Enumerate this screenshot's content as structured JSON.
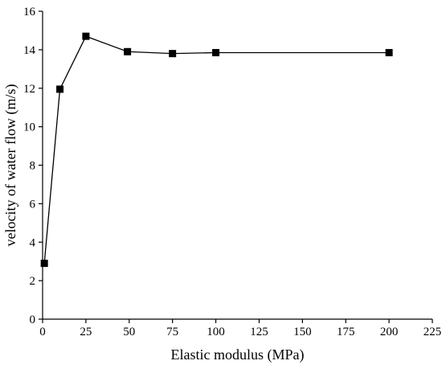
{
  "chart_data": {
    "type": "line",
    "title": "",
    "xlabel": "Elastic modulus (MPa)",
    "ylabel": "velocity of water flow (m/s)",
    "xlim": [
      0,
      225
    ],
    "ylim": [
      0,
      16
    ],
    "x_ticks": [
      0,
      25,
      50,
      75,
      100,
      125,
      150,
      175,
      200,
      225
    ],
    "y_ticks": [
      0,
      2,
      4,
      6,
      8,
      10,
      12,
      14,
      16
    ],
    "grid": false,
    "legend": "none",
    "series": [
      {
        "marker": "square",
        "color": "#000000",
        "x": [
          1,
          10,
          25,
          49,
          75,
          100,
          200
        ],
        "y": [
          2.9,
          11.95,
          14.7,
          13.9,
          13.8,
          13.85,
          13.85
        ]
      }
    ]
  }
}
